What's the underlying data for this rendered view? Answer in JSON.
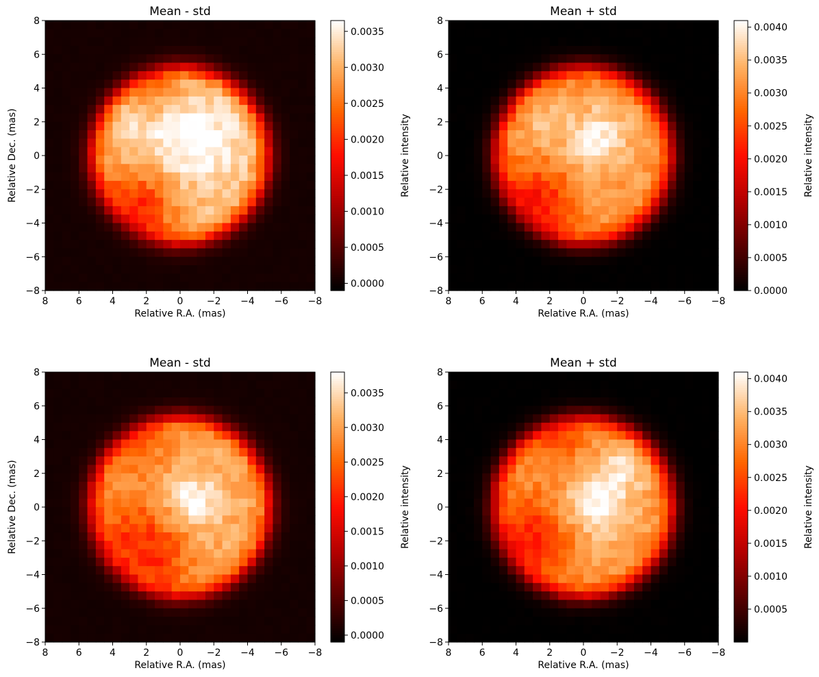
{
  "figure": {
    "background": "#ffffff"
  },
  "colormap": {
    "name": "gist_heat",
    "stops": [
      "#000000",
      "#590000",
      "#b30000",
      "#ff0d00",
      "#ff6600",
      "#ffb366",
      "#ffffff"
    ]
  },
  "chart_data": [
    {
      "type": "heatmap",
      "title": "Mean - std",
      "xlabel": "Relative R.A. (mas)",
      "ylabel": "Relative Dec. (mas)",
      "colorbar_label": "Relative intensity",
      "xlim": [
        8,
        -8
      ],
      "ylim": [
        -8,
        8
      ],
      "xticks": [
        "8",
        "6",
        "4",
        "2",
        "0",
        "−2",
        "−4",
        "−6",
        "−8"
      ],
      "yticks": [
        "8",
        "6",
        "4",
        "2",
        "0",
        "−2",
        "−4",
        "−6",
        "−8"
      ],
      "vmin": -0.0001,
      "vmax": 0.00365,
      "colorbar_ticks": [
        "0.0000",
        "0.0005",
        "0.0010",
        "0.0015",
        "0.0020",
        "0.0025",
        "0.0030",
        "0.0035"
      ],
      "colorbar_tick_values": [
        0.0,
        0.0005,
        0.001,
        0.0015,
        0.002,
        0.0025,
        0.003,
        0.0035
      ],
      "grid_size": 32,
      "pixel_size_mas": 0.5,
      "disk_radius_mas": 5.2,
      "disk_center_mas": [
        0.0,
        0.0
      ],
      "background_level": 5e-05,
      "disk_level": 0.0031,
      "features": [
        {
          "ra": -0.8,
          "dec": 0.9,
          "sigma": 1.8,
          "amp": 0.0007
        },
        {
          "ra": 2.5,
          "dec": -3.0,
          "sigma": 1.6,
          "amp": -0.0011
        },
        {
          "ra": 3.0,
          "dec": 2.0,
          "sigma": 1.2,
          "amp": 0.0002
        },
        {
          "ra": 1.5,
          "dec": 4.0,
          "sigma": 1.2,
          "amp": -0.0005
        }
      ]
    },
    {
      "type": "heatmap",
      "title": "Mean + std",
      "xlabel": "Relative R.A. (mas)",
      "ylabel": "",
      "colorbar_label": "Relative intensity",
      "xlim": [
        8,
        -8
      ],
      "ylim": [
        -8,
        8
      ],
      "xticks": [
        "8",
        "6",
        "4",
        "2",
        "0",
        "−2",
        "−4",
        "−6",
        "−8"
      ],
      "yticks": [
        "8",
        "6",
        "4",
        "2",
        "0",
        "−2",
        "−4",
        "−6",
        "−8"
      ],
      "vmin": 0.0,
      "vmax": 0.0041,
      "colorbar_ticks": [
        "0.0000",
        "0.0005",
        "0.0010",
        "0.0015",
        "0.0020",
        "0.0025",
        "0.0030",
        "0.0035",
        "0.0040"
      ],
      "colorbar_tick_values": [
        0.0,
        0.0005,
        0.001,
        0.0015,
        0.002,
        0.0025,
        0.003,
        0.0035,
        0.004
      ],
      "grid_size": 32,
      "pixel_size_mas": 0.5,
      "disk_radius_mas": 5.2,
      "disk_center_mas": [
        0.0,
        0.0
      ],
      "background_level": 0.0,
      "disk_level": 0.0032,
      "features": [
        {
          "ra": -0.8,
          "dec": 1.0,
          "sigma": 1.3,
          "amp": 0.0008
        },
        {
          "ra": 2.8,
          "dec": -2.8,
          "sigma": 1.5,
          "amp": -0.0011
        },
        {
          "ra": 2.5,
          "dec": 2.0,
          "sigma": 1.0,
          "amp": 0.0003
        }
      ]
    },
    {
      "type": "heatmap",
      "title": "Mean - std",
      "xlabel": "Relative R.A. (mas)",
      "ylabel": "Relative Dec. (mas)",
      "colorbar_label": "Relative intensity",
      "xlim": [
        8,
        -8
      ],
      "ylim": [
        -8,
        8
      ],
      "xticks": [
        "8",
        "6",
        "4",
        "2",
        "0",
        "−2",
        "−4",
        "−6",
        "−8"
      ],
      "yticks": [
        "8",
        "6",
        "4",
        "2",
        "0",
        "−2",
        "−4",
        "−6",
        "−8"
      ],
      "vmin": -0.0001,
      "vmax": 0.0038,
      "colorbar_ticks": [
        "0.0000",
        "0.0005",
        "0.0010",
        "0.0015",
        "0.0020",
        "0.0025",
        "0.0030",
        "0.0035"
      ],
      "colorbar_tick_values": [
        0.0,
        0.0005,
        0.001,
        0.0015,
        0.002,
        0.0025,
        0.003,
        0.0035
      ],
      "grid_size": 32,
      "pixel_size_mas": 0.5,
      "disk_radius_mas": 5.3,
      "disk_center_mas": [
        0.0,
        0.0
      ],
      "background_level": 5e-05,
      "disk_level": 0.0031,
      "features": [
        {
          "ra": -0.8,
          "dec": 0.3,
          "sigma": 1.0,
          "amp": 0.0008
        },
        {
          "ra": 2.8,
          "dec": -2.0,
          "sigma": 1.8,
          "amp": -0.0009
        },
        {
          "ra": 1.0,
          "dec": -3.5,
          "sigma": 1.3,
          "amp": -0.0005
        },
        {
          "ra": 2.5,
          "dec": 3.5,
          "sigma": 1.2,
          "amp": -0.0006
        }
      ]
    },
    {
      "type": "heatmap",
      "title": "Mean + std",
      "xlabel": "Relative R.A. (mas)",
      "ylabel": "",
      "colorbar_label": "Relative intensity",
      "xlim": [
        8,
        -8
      ],
      "ylim": [
        -8,
        8
      ],
      "xticks": [
        "8",
        "6",
        "4",
        "2",
        "0",
        "−2",
        "−4",
        "−6",
        "−8"
      ],
      "yticks": [
        "8",
        "6",
        "4",
        "2",
        "0",
        "−2",
        "−4",
        "−6",
        "−8"
      ],
      "vmin": 0.0,
      "vmax": 0.0041,
      "colorbar_ticks": [
        "0.0005",
        "0.0010",
        "0.0015",
        "0.0020",
        "0.0025",
        "0.0030",
        "0.0035",
        "0.0040"
      ],
      "colorbar_tick_values": [
        0.0005,
        0.001,
        0.0015,
        0.002,
        0.0025,
        0.003,
        0.0035,
        0.004
      ],
      "grid_size": 32,
      "pixel_size_mas": 0.5,
      "disk_radius_mas": 5.3,
      "disk_center_mas": [
        0.0,
        0.0
      ],
      "background_level": 0.0,
      "disk_level": 0.0032,
      "features": [
        {
          "ra": -0.8,
          "dec": 0.0,
          "sigma": 1.4,
          "amp": 0.0009
        },
        {
          "ra": -2.5,
          "dec": 2.5,
          "sigma": 1.0,
          "amp": 0.0006
        },
        {
          "ra": 3.0,
          "dec": -1.8,
          "sigma": 1.7,
          "amp": -0.001
        },
        {
          "ra": 1.5,
          "dec": 4.0,
          "sigma": 1.2,
          "amp": -0.0006
        }
      ]
    }
  ]
}
